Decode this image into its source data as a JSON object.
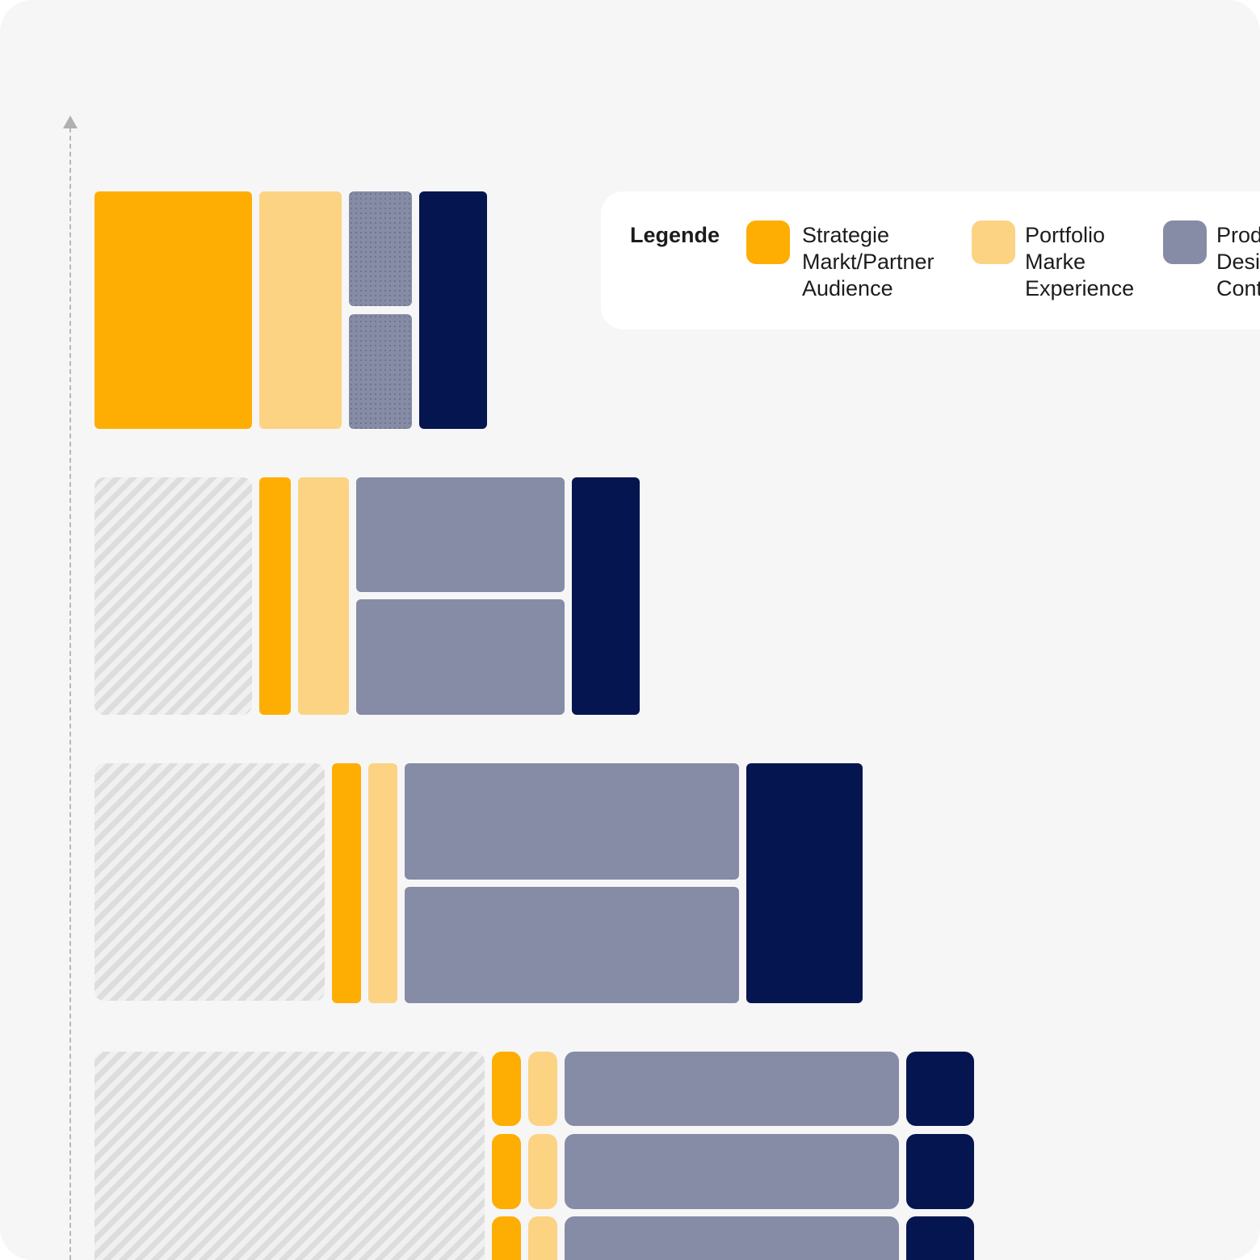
{
  "colors": {
    "strategie": "#FEAE02",
    "portfolio": "#FBD383",
    "produkt": "#868BA6",
    "navy": "#04154F",
    "hatch": "#DDDDDD"
  },
  "legend": {
    "title": "Legende",
    "items": [
      {
        "color_key": "strategie",
        "lines": [
          "Strategie",
          "Markt/Partner",
          "Audience"
        ]
      },
      {
        "color_key": "portfolio",
        "lines": [
          "Portfolio",
          "Marke",
          "Experience"
        ]
      },
      {
        "color_key": "produkt",
        "lines": [
          "Prod",
          "Desi",
          "Cont"
        ]
      }
    ]
  }
}
